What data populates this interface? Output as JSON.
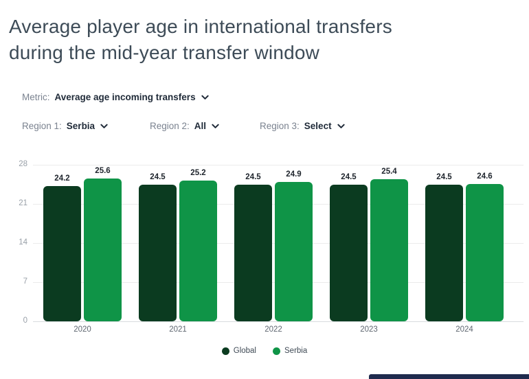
{
  "header": {
    "title": "Average player age in international transfers during the mid-year transfer window",
    "title_lines": [
      "Average player age in international transfers",
      "during the mid-year transfer window"
    ]
  },
  "controls": {
    "metric": {
      "label": "Metric:",
      "value": "Average age incoming transfers"
    },
    "region1": {
      "label": "Region 1:",
      "value": "Serbia"
    },
    "region2": {
      "label": "Region 2:",
      "value": "All"
    },
    "region3": {
      "label": "Region 3:",
      "value": "Select"
    }
  },
  "chart_data": {
    "type": "bar",
    "title": "",
    "categories": [
      "2020",
      "2021",
      "2022",
      "2023",
      "2024"
    ],
    "series": [
      {
        "name": "Global",
        "color": "#0b3b20",
        "values": [
          24.2,
          24.5,
          24.5,
          24.5,
          24.5
        ]
      },
      {
        "name": "Serbia",
        "color": "#0f9447",
        "values": [
          25.6,
          25.2,
          24.9,
          25.4,
          24.6
        ]
      }
    ],
    "xlabel": "",
    "ylabel": "",
    "ylim": [
      0,
      28
    ],
    "yticks": [
      0,
      7,
      14,
      21,
      28
    ],
    "grid": true,
    "legend_position": "bottom",
    "value_labels": true
  },
  "icons": {
    "dropdown": "chevron-down"
  },
  "colors": {
    "title_text": "#3d4b57",
    "control_label": "#7a828f",
    "control_value": "#1f2a38",
    "bar_global": "#0b3b20",
    "bar_serbia": "#0f9447",
    "gridline": "#ebebeb",
    "axis_text": "#99a0a8",
    "peek_widget": "#1f2b4e"
  }
}
